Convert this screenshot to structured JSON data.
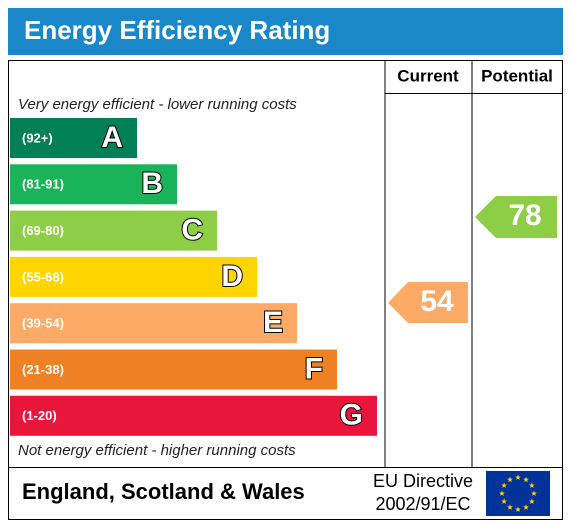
{
  "header": {
    "title": "Energy Efficiency Rating"
  },
  "columns": {
    "current": "Current",
    "potential": "Potential"
  },
  "top_note": "Very energy efficient - lower running costs",
  "bottom_note": "Not energy efficient - higher running costs",
  "bands": [
    {
      "range": "(92+)",
      "letter": "A",
      "color": "#008054"
    },
    {
      "range": "(81-91)",
      "letter": "B",
      "color": "#19b459"
    },
    {
      "range": "(69-80)",
      "letter": "C",
      "color": "#8dce46"
    },
    {
      "range": "(55-68)",
      "letter": "D",
      "color": "#ffd500"
    },
    {
      "range": "(39-54)",
      "letter": "E",
      "color": "#fcaa65"
    },
    {
      "range": "(21-38)",
      "letter": "F",
      "color": "#ef8023"
    },
    {
      "range": "(1-20)",
      "letter": "G",
      "color": "#e9153b"
    }
  ],
  "current": {
    "value": 54,
    "color": "#fcaa65"
  },
  "potential": {
    "value": 78,
    "color": "#8dce46"
  },
  "footer": {
    "region": "England, Scotland & Wales",
    "directive": [
      "EU Directive",
      "2002/91/EC"
    ]
  }
}
